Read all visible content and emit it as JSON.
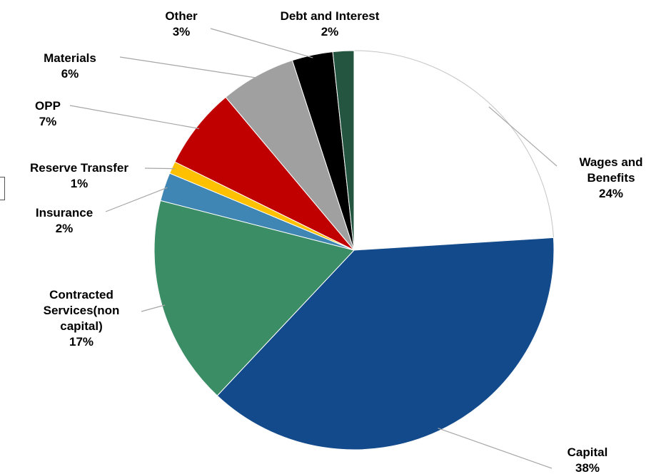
{
  "chart_data": {
    "type": "pie",
    "title": "",
    "slices": [
      {
        "label": "Wages and Benefits",
        "lines": [
          "Wages and",
          "Benefits"
        ],
        "pct_text": "24%",
        "value": 24,
        "color": "#ffffff"
      },
      {
        "label": "Capital",
        "lines": [
          "Capital"
        ],
        "pct_text": "38%",
        "value": 38,
        "color": "#124a8b"
      },
      {
        "label": "Contracted Services(non capital)",
        "lines": [
          "Contracted",
          "Services(non",
          "capital)"
        ],
        "pct_text": "17%",
        "value": 17,
        "color": "#3a8d65"
      },
      {
        "label": "Insurance",
        "lines": [
          "Insurance"
        ],
        "pct_text": "2%",
        "value": 2.3,
        "color": "#3f86b5"
      },
      {
        "label": "Reserve Transfer",
        "lines": [
          "Reserve Transfer"
        ],
        "pct_text": "1%",
        "value": 1.0,
        "color": "#ffc000"
      },
      {
        "label": "OPP",
        "lines": [
          "OPP"
        ],
        "pct_text": "7%",
        "value": 6.6,
        "color": "#c00000"
      },
      {
        "label": "Materials",
        "lines": [
          "Materials"
        ],
        "pct_text": "6%",
        "value": 6.1,
        "color": "#a0a0a0"
      },
      {
        "label": "Other",
        "lines": [
          "Other"
        ],
        "pct_text": "3%",
        "value": 3.3,
        "color": "#000000"
      },
      {
        "label": "Debt and Interest",
        "lines": [
          "Debt and Interest"
        ],
        "pct_text": "2%",
        "value": 1.7,
        "color": "#245540"
      }
    ],
    "start": "12 o'clock",
    "direction": "clockwise",
    "legend": "none; data labels outside with leader lines"
  }
}
